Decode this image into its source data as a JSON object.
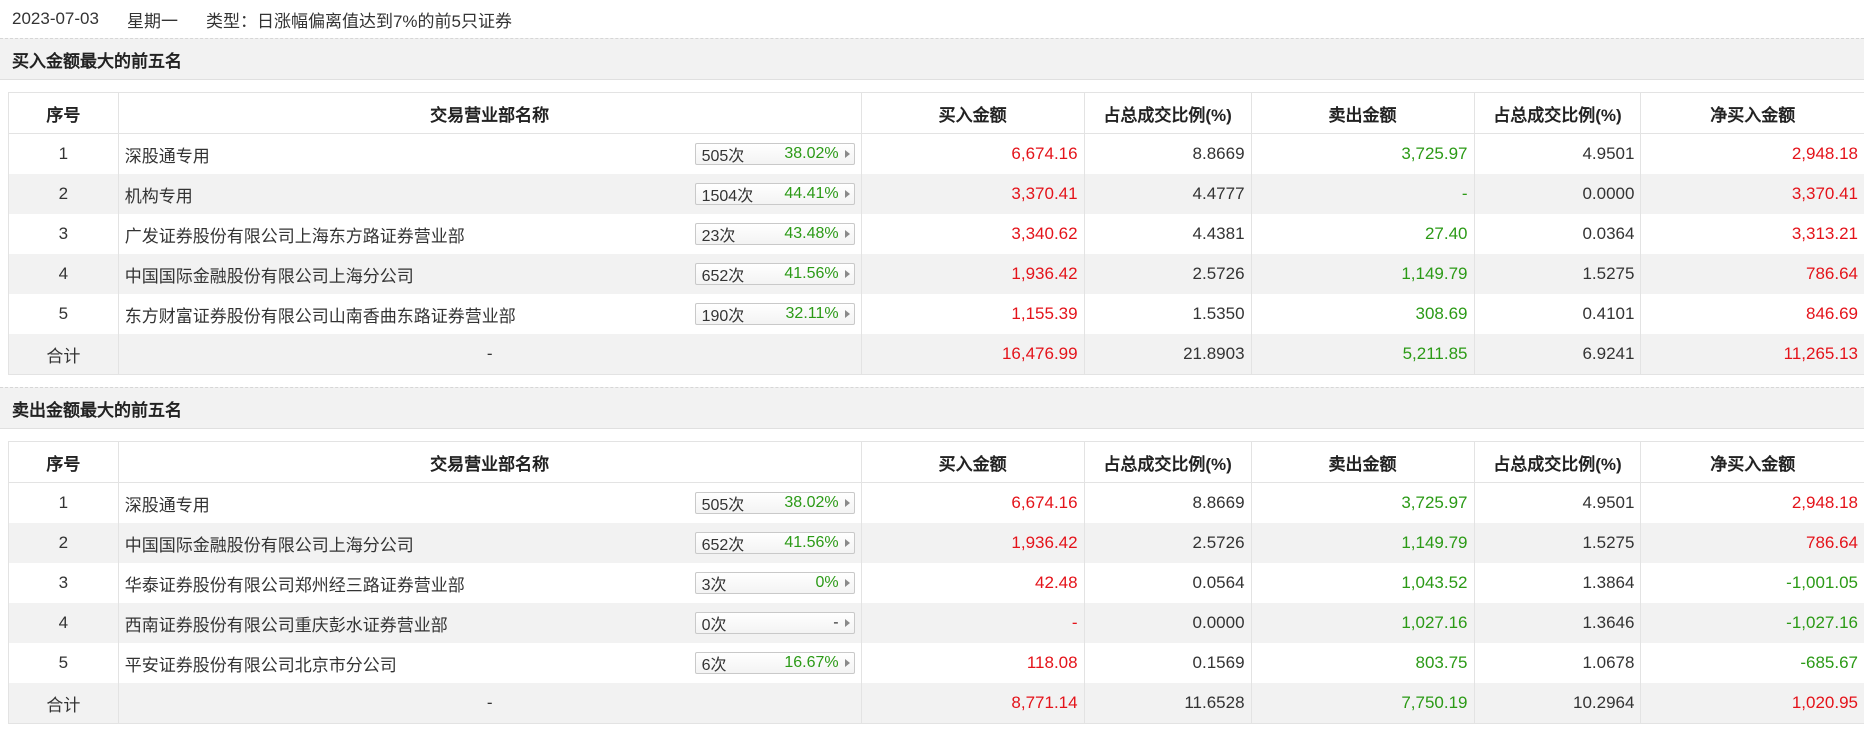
{
  "header": {
    "date": "2023-07-03",
    "weekday": "星期一",
    "type_text": "类型：日涨幅偏离值达到7%的前5只证券"
  },
  "columns": [
    "序号",
    "交易营业部名称",
    "买入金额",
    "占总成交比例(%)",
    "卖出金额",
    "占总成交比例(%)",
    "净买入金额"
  ],
  "colors": {
    "red": "#e4131a",
    "green": "#2b9a16",
    "stripe": "#f2f2f2"
  },
  "buy_section": {
    "title": "买入金额最大的前五名",
    "rows": [
      {
        "idx": "1",
        "name": "深股通专用",
        "count": "505次",
        "pct": "38.02%",
        "buy": "6,674.16",
        "buy_ratio": "8.8669",
        "sell": "3,725.97",
        "sell_ratio": "4.9501",
        "net": "2,948.18"
      },
      {
        "idx": "2",
        "name": "机构专用",
        "count": "1504次",
        "pct": "44.41%",
        "buy": "3,370.41",
        "buy_ratio": "4.4777",
        "sell": "-",
        "sell_ratio": "0.0000",
        "net": "3,370.41"
      },
      {
        "idx": "3",
        "name": "广发证券股份有限公司上海东方路证券营业部",
        "count": "23次",
        "pct": "43.48%",
        "buy": "3,340.62",
        "buy_ratio": "4.4381",
        "sell": "27.40",
        "sell_ratio": "0.0364",
        "net": "3,313.21"
      },
      {
        "idx": "4",
        "name": "中国国际金融股份有限公司上海分公司",
        "count": "652次",
        "pct": "41.56%",
        "buy": "1,936.42",
        "buy_ratio": "2.5726",
        "sell": "1,149.79",
        "sell_ratio": "1.5275",
        "net": "786.64"
      },
      {
        "idx": "5",
        "name": "东方财富证券股份有限公司山南香曲东路证券营业部",
        "count": "190次",
        "pct": "32.11%",
        "buy": "1,155.39",
        "buy_ratio": "1.5350",
        "sell": "308.69",
        "sell_ratio": "0.4101",
        "net": "846.69"
      }
    ],
    "total": {
      "label": "合计",
      "name": "-",
      "buy": "16,476.99",
      "buy_ratio": "21.8903",
      "sell": "5,211.85",
      "sell_ratio": "6.9241",
      "net": "11,265.13"
    }
  },
  "sell_section": {
    "title": "卖出金额最大的前五名",
    "rows": [
      {
        "idx": "1",
        "name": "深股通专用",
        "count": "505次",
        "pct": "38.02%",
        "buy": "6,674.16",
        "buy_ratio": "8.8669",
        "sell": "3,725.97",
        "sell_ratio": "4.9501",
        "net": "2,948.18"
      },
      {
        "idx": "2",
        "name": "中国国际金融股份有限公司上海分公司",
        "count": "652次",
        "pct": "41.56%",
        "buy": "1,936.42",
        "buy_ratio": "2.5726",
        "sell": "1,149.79",
        "sell_ratio": "1.5275",
        "net": "786.64"
      },
      {
        "idx": "3",
        "name": "华泰证券股份有限公司郑州经三路证券营业部",
        "count": "3次",
        "pct": "0%",
        "buy": "42.48",
        "buy_ratio": "0.0564",
        "sell": "1,043.52",
        "sell_ratio": "1.3864",
        "net": "-1,001.05"
      },
      {
        "idx": "4",
        "name": "西南证券股份有限公司重庆彭水证券营业部",
        "count": "0次",
        "pct": "-",
        "buy": "-",
        "buy_ratio": "0.0000",
        "sell": "1,027.16",
        "sell_ratio": "1.3646",
        "net": "-1,027.16"
      },
      {
        "idx": "5",
        "name": "平安证券股份有限公司北京市分公司",
        "count": "6次",
        "pct": "16.67%",
        "buy": "118.08",
        "buy_ratio": "0.1569",
        "sell": "803.75",
        "sell_ratio": "1.0678",
        "net": "-685.67"
      }
    ],
    "total": {
      "label": "合计",
      "name": "-",
      "buy": "8,771.14",
      "buy_ratio": "11.6528",
      "sell": "7,750.19",
      "sell_ratio": "10.2964",
      "net": "1,020.95"
    }
  }
}
